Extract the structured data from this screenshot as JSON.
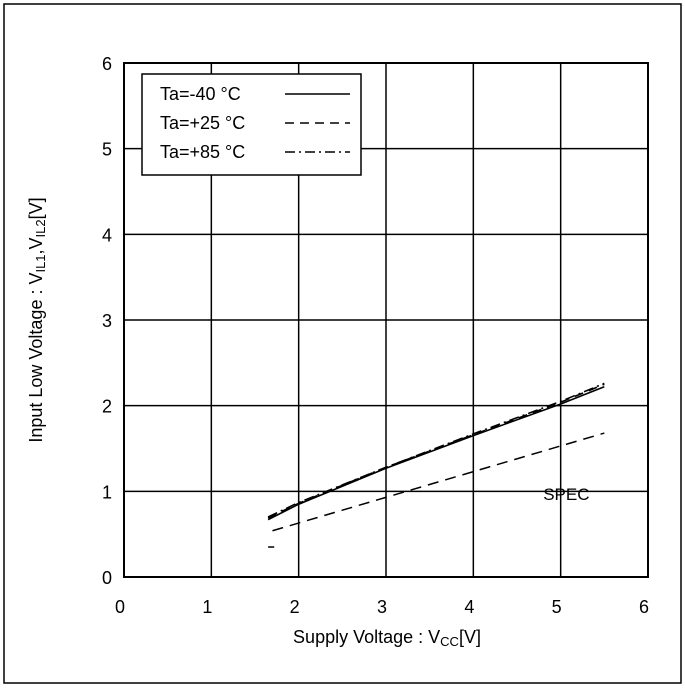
{
  "chart_data": {
    "type": "line",
    "title": "",
    "xlabel": "Supply Voltage : V",
    "xlabel_sub": "CC",
    "xlabel_suffix": "[V]",
    "ylabel": "Input Low Voltage : V",
    "ylabel_sub1": "IL1",
    "ylabel_mid": ",V",
    "ylabel_sub2": "IL2",
    "ylabel_suffix": "[V]",
    "xlim": [
      0,
      6
    ],
    "ylim": [
      0,
      6
    ],
    "xticks": [
      "0",
      "1",
      "2",
      "3",
      "4",
      "5",
      "6"
    ],
    "yticks": [
      "0",
      "1",
      "2",
      "3",
      "4",
      "5",
      "6"
    ],
    "grid": true,
    "legend_position": "top-left",
    "series": [
      {
        "name": "Ta=-40 °C",
        "style": "solid",
        "x": [
          1.65,
          2.0,
          3.0,
          4.0,
          5.0,
          5.5
        ],
        "y": [
          0.67,
          0.85,
          1.27,
          1.65,
          2.02,
          2.22
        ]
      },
      {
        "name": "Ta=+25 °C",
        "style": "dashed",
        "x": [
          1.65,
          2.0,
          3.0,
          4.0,
          5.0,
          5.5
        ],
        "y": [
          0.69,
          0.86,
          1.28,
          1.66,
          2.04,
          2.25
        ]
      },
      {
        "name": "Ta=+85 °C",
        "style": "dashdot",
        "x": [
          1.65,
          2.0,
          3.0,
          4.0,
          5.0,
          5.5
        ],
        "y": [
          0.7,
          0.87,
          1.28,
          1.67,
          2.05,
          2.26
        ]
      }
    ],
    "spec": {
      "label": "SPEC",
      "style": "dashed",
      "x": [
        1.7,
        5.5
      ],
      "y": [
        0.54,
        1.68
      ],
      "mark_x": [
        1.65,
        1.72
      ],
      "mark_y": 0.35
    }
  },
  "colors": {
    "line": "#000000",
    "frame": "#000000",
    "grid": "#000000",
    "background": "#ffffff"
  }
}
